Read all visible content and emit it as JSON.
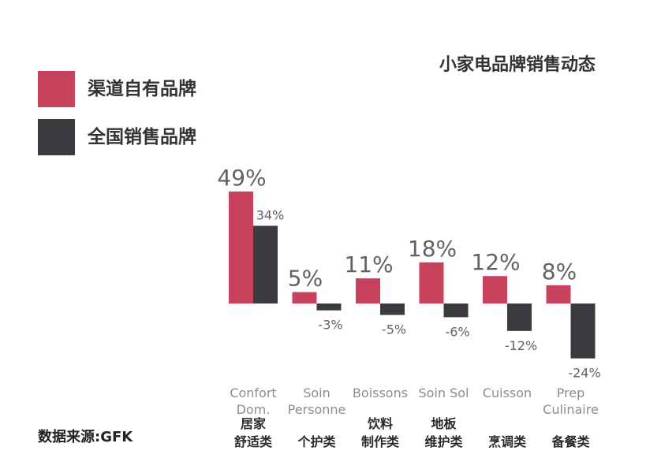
{
  "title": "小家电品牌销售动态",
  "legend": [
    {
      "label": "渠道自有品牌",
      "color": "#c8415d"
    },
    {
      "label": "全国销售品牌",
      "color": "#3a3b3e"
    }
  ],
  "source": "数据来源:GFK",
  "chart_data": {
    "type": "bar",
    "categories": [
      {
        "en": [
          "Confort",
          "Dom."
        ],
        "zh": [
          "居家",
          "舒适类"
        ]
      },
      {
        "en": [
          "Soin",
          "Personne"
        ],
        "zh": [
          "个护类"
        ]
      },
      {
        "en": [
          "Boissons"
        ],
        "zh": [
          "饮料",
          "制作类"
        ]
      },
      {
        "en": [
          "Soin Sol"
        ],
        "zh": [
          "地板",
          "维护类"
        ]
      },
      {
        "en": [
          "Cuisson"
        ],
        "zh": [
          "烹调类"
        ]
      },
      {
        "en": [
          "Prep",
          "Culinaire"
        ],
        "zh": [
          "备餐类"
        ]
      }
    ],
    "series": [
      {
        "name": "渠道自有品牌",
        "values": [
          49,
          5,
          11,
          18,
          12,
          8
        ],
        "labels": [
          "49%",
          "5%",
          "11%",
          "18%",
          "12%",
          "8%"
        ]
      },
      {
        "name": "全国销售品牌",
        "values": [
          34,
          -3,
          -5,
          -6,
          -12,
          -24
        ],
        "labels": [
          "34%",
          "-3%",
          "-5%",
          "-6%",
          "-12%",
          "-24%"
        ]
      }
    ]
  }
}
